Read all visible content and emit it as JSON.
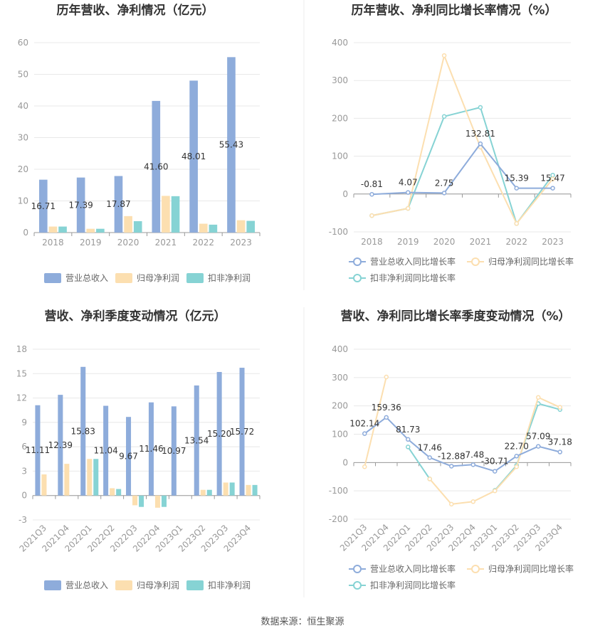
{
  "source": "数据来源：恒生聚源",
  "colors": {
    "revenue": "#8EACDB",
    "net_profit": "#FCDFB0",
    "deducted": "#86D3D4",
    "revenue_line": "#8EACDB",
    "net_profit_line": "#FCDFB0",
    "deducted_line": "#86D3D4"
  },
  "chart_data": [
    {
      "type": "bar",
      "title": "历年营收、净利情况（亿元）",
      "categories": [
        "2018",
        "2019",
        "2020",
        "2021",
        "2022",
        "2023"
      ],
      "ylim": [
        0,
        60
      ],
      "yticks": [
        0,
        10,
        20,
        30,
        40,
        50,
        60
      ],
      "grid": true,
      "legend": "bottom",
      "series": [
        {
          "name": "营业总收入",
          "values": [
            16.71,
            17.39,
            17.87,
            41.6,
            48.01,
            55.43
          ],
          "labels": [
            "16.71",
            "17.39",
            "17.87",
            "41.60",
            "48.01",
            "55.43"
          ]
        },
        {
          "name": "归母净利润",
          "values": [
            1.9,
            1.2,
            5.2,
            11.6,
            2.8,
            3.9
          ]
        },
        {
          "name": "扣非净利润",
          "values": [
            1.9,
            1.2,
            3.6,
            11.5,
            2.5,
            3.7
          ]
        }
      ]
    },
    {
      "type": "line",
      "title": "历年营收、净利同比增长率情况（%）",
      "categories": [
        "2018",
        "2019",
        "2020",
        "2021",
        "2022",
        "2023"
      ],
      "ylim": [
        -100,
        400
      ],
      "yticks": [
        -100,
        0,
        100,
        200,
        300,
        400
      ],
      "grid": true,
      "legend": "bottom",
      "series": [
        {
          "name": "营业总收入同比增长率",
          "values": [
            -0.81,
            4.07,
            2.75,
            132.81,
            15.39,
            15.47
          ],
          "labels": [
            "-0.81",
            "4.07",
            "2.75",
            "132.81",
            "15.39",
            "15.47"
          ]
        },
        {
          "name": "归母净利润同比增长率",
          "values": [
            -57,
            -38,
            366,
            124,
            -78,
            40
          ]
        },
        {
          "name": "扣非净利润同比增长率",
          "values": [
            -57,
            -38,
            205,
            229,
            -78,
            50
          ]
        }
      ]
    },
    {
      "type": "bar",
      "title": "营收、净利季度变动情况（亿元）",
      "categories": [
        "2021Q3",
        "2021Q4",
        "2022Q1",
        "2022Q2",
        "2022Q3",
        "2022Q4",
        "2023Q1",
        "2023Q2",
        "2023Q3",
        "2023Q4"
      ],
      "ylim": [
        -3,
        18
      ],
      "yticks": [
        -3,
        0,
        3,
        6,
        9,
        12,
        15,
        18
      ],
      "grid": true,
      "legend": "bottom",
      "series": [
        {
          "name": "营业总收入",
          "values": [
            11.11,
            12.39,
            15.83,
            11.04,
            9.67,
            11.46,
            10.97,
            13.54,
            15.2,
            15.72
          ],
          "labels": [
            "11.11",
            "12.39",
            "15.83",
            "11.04",
            "9.67",
            "11.46",
            "10.97",
            "13.54",
            "15.20",
            "15.72"
          ]
        },
        {
          "name": "归母净利润",
          "values": [
            2.6,
            3.9,
            4.5,
            0.9,
            -1.2,
            -1.5,
            0.0,
            0.7,
            1.6,
            1.3
          ]
        },
        {
          "name": "扣非净利润",
          "values": [
            0.0,
            0.0,
            4.5,
            0.8,
            -1.4,
            -1.4,
            0.0,
            0.7,
            1.6,
            1.3
          ]
        }
      ]
    },
    {
      "type": "line",
      "title": "营收、净利同比增长率季度变动情况（%）",
      "categories": [
        "2021Q3",
        "2021Q4",
        "2022Q1",
        "2022Q2",
        "2022Q3",
        "2022Q4",
        "2023Q1",
        "2023Q2",
        "2023Q3",
        "2023Q4"
      ],
      "ylim": [
        -200,
        400
      ],
      "yticks": [
        -200,
        -100,
        0,
        100,
        200,
        300,
        400
      ],
      "grid": true,
      "legend": "bottom",
      "series": [
        {
          "name": "营业总收入同比增长率",
          "values": [
            102.14,
            159.36,
            81.73,
            17.46,
            -12.88,
            -7.48,
            -30.71,
            22.7,
            57.09,
            37.18
          ],
          "labels": [
            "102.14",
            "159.36",
            "81.73",
            "17.46",
            "-12.88",
            "-7.48",
            "-30.71",
            "22.70",
            "57.09",
            "37.18"
          ]
        },
        {
          "name": "归母净利润同比增长率",
          "values": [
            -15,
            302,
            null,
            -58,
            -147,
            -138,
            -100,
            -15,
            230,
            195
          ]
        },
        {
          "name": "扣非净利润同比增长率",
          "values": [
            null,
            null,
            55,
            -58,
            null,
            null,
            -98,
            -10,
            208,
            187
          ]
        }
      ]
    }
  ]
}
